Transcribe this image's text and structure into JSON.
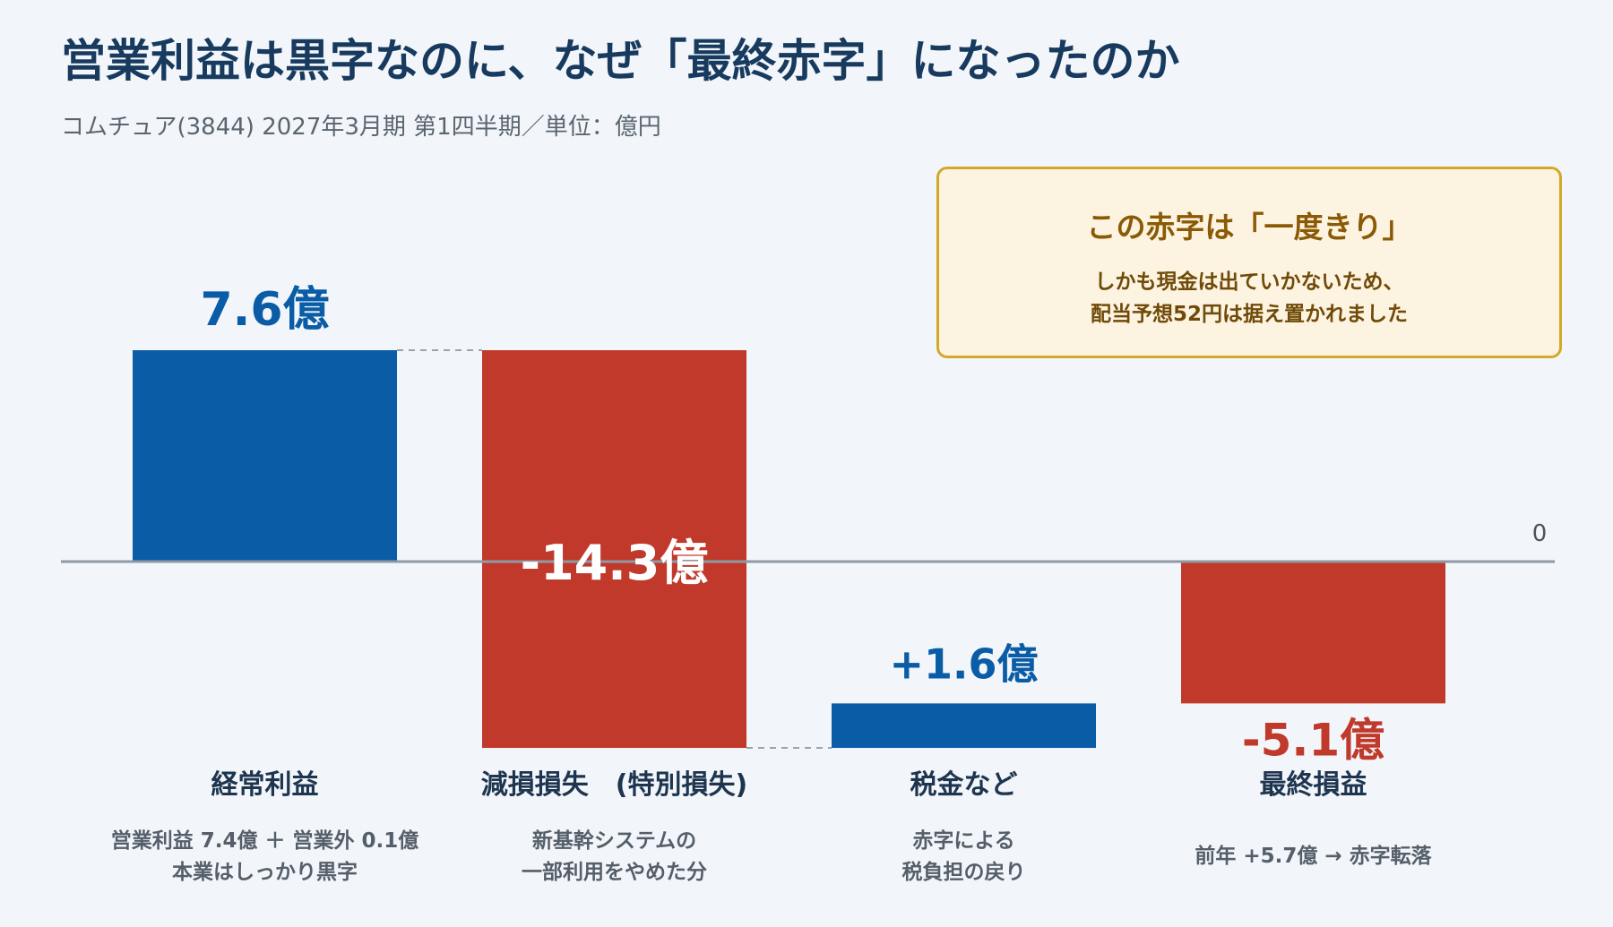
{
  "title": "営業利益は黒字なのに、なぜ「最終赤字」になったのか",
  "subtitle": "コムチュア(3844) 2027年3月期 第1四半期／単位：億円",
  "note": {
    "title": "この赤字は「一度きり」",
    "line1": "しかも現金は出ていかないため、",
    "line2": "配当予想52円は据え置かれました"
  },
  "colors": {
    "positive": "#0b5ca6",
    "negative": "#c0392b",
    "axis": "#8f9aa6",
    "connector": "#9aa3ad",
    "title": "#173a5e"
  },
  "chart_data": {
    "type": "waterfall",
    "unit": "億円",
    "zero_label": "0",
    "grid": false,
    "steps": [
      {
        "category": "経常利益",
        "value": 7.6,
        "start": 0,
        "end": 7.6,
        "kind": "positive",
        "value_label": "7.6億",
        "desc": [
          "営業利益 7.4億 ＋ 営業外 0.1億",
          "本業はしっかり黒字"
        ]
      },
      {
        "category": "減損損失　(特別損失)",
        "value": -14.3,
        "start": 7.6,
        "end": -6.7,
        "kind": "negative",
        "value_label": "-14.3億",
        "desc": [
          "新基幹システムの",
          "一部利用をやめた分"
        ]
      },
      {
        "category": "税金など",
        "value": 1.6,
        "start": -6.7,
        "end": -5.1,
        "kind": "positive",
        "value_label": "+1.6億",
        "desc": [
          "赤字による",
          "税負担の戻り"
        ]
      },
      {
        "category": "最終損益",
        "value": -5.1,
        "start": 0,
        "end": -5.1,
        "kind": "negative",
        "value_label": "-5.1億",
        "desc": [
          "前年 +5.7億 → 赤字転落"
        ]
      }
    ]
  }
}
